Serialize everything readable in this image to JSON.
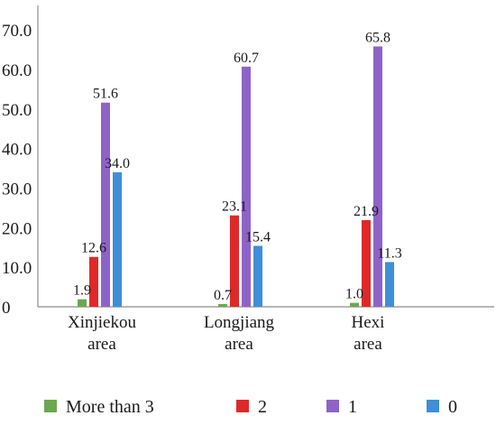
{
  "chart_data": {
    "type": "bar",
    "categories": [
      "Xinjiekou area",
      "Longjiang area",
      "Hexi area"
    ],
    "category_lines": [
      [
        "Xinjiekou",
        "area"
      ],
      [
        "Longjiang",
        "area"
      ],
      [
        "Hexi",
        "area"
      ]
    ],
    "series": [
      {
        "name": "More than 3",
        "color": "#6aa84f",
        "values": [
          1.9,
          0.7,
          1.0
        ]
      },
      {
        "name": "2",
        "color": "#e02828",
        "values": [
          12.6,
          23.1,
          21.9
        ]
      },
      {
        "name": "1",
        "color": "#8e63c8",
        "values": [
          51.6,
          60.7,
          65.8
        ]
      },
      {
        "name": "0",
        "color": "#3e8ed8",
        "values": [
          34.0,
          15.4,
          11.3
        ]
      }
    ],
    "data_labels": [
      [
        "1.9",
        "0.7",
        "1.0"
      ],
      [
        "12.6",
        "23.1",
        "21.9"
      ],
      [
        "51.6",
        "60.7",
        "65.8"
      ],
      [
        "34.0",
        "15.4",
        "11.3"
      ]
    ],
    "y_ticks": [
      0,
      10,
      20,
      30,
      40,
      50,
      60,
      70
    ],
    "y_tick_labels": [
      "0",
      "10.0",
      "20.0",
      "30.0",
      "40.0",
      "50.0",
      "60.0",
      "70.0"
    ],
    "ylim": [
      0,
      75
    ],
    "title": "",
    "xlabel": "",
    "ylabel": "",
    "grid": false,
    "legend_position": "bottom"
  }
}
